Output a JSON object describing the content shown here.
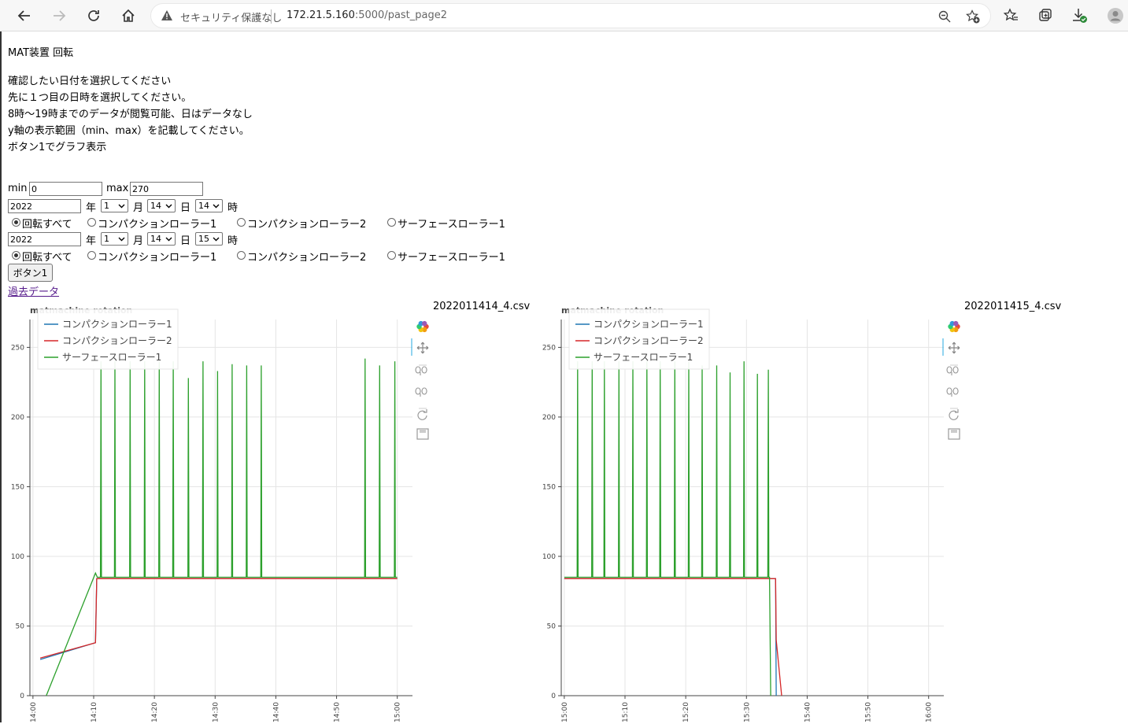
{
  "browser": {
    "security_text": "セキュリティ保護なし",
    "url_host": "172.21.5.160",
    "url_path": ":5000/past_page2"
  },
  "page": {
    "heading": "MAT装置 回転",
    "instructions": [
      "確認したい日付を選択してください",
      "先に１つ目の日時を選択してください。",
      "8時～19時までのデータが閲覧可能、日はデータなし",
      "y軸の表示範囲（min、max）を記載してください。",
      "ボタン1でグラフ表示"
    ],
    "min_label": "min",
    "min_value": "0",
    "max_label": "max",
    "max_value": "270",
    "rows": [
      {
        "year": "2022",
        "year_unit": "年",
        "month": "1",
        "month_unit": "月",
        "day": "14",
        "day_unit": "日",
        "hour": "14",
        "hour_unit": "時"
      },
      {
        "year": "2022",
        "year_unit": "年",
        "month": "1",
        "month_unit": "月",
        "day": "14",
        "day_unit": "日",
        "hour": "15",
        "hour_unit": "時"
      }
    ],
    "radio_options": [
      "回転すべて",
      "コンパクションローラー1",
      "コンパクションローラー2",
      "サーフェースローラー1"
    ],
    "selected_radio": 0,
    "button_label": "ボタン1",
    "link_label": "過去データ"
  },
  "colors": {
    "series1": "#1f77b4",
    "series2": "#d62728",
    "series3": "#2ca02c"
  },
  "chart_data": [
    {
      "type": "line",
      "title": "matmachine rotation",
      "file_label": "2022011414_4.csv",
      "ylim": [
        0,
        270
      ],
      "y_ticks": [
        0,
        50,
        100,
        150,
        200,
        250
      ],
      "x_ticks": [
        "14:00",
        "14:10",
        "14:20",
        "14:30",
        "14:40",
        "14:50",
        "15:00"
      ],
      "x_range_minutes": [
        -0.5,
        62.5
      ],
      "legend_position": "top-left",
      "grid": true,
      "series": [
        {
          "name": "コンパクションローラー1",
          "x": [
            1.2,
            10.3,
            10.5,
            27.5,
            36.9,
            54.5,
            60
          ],
          "y": [
            26,
            38,
            84,
            84,
            84,
            84,
            84
          ]
        },
        {
          "name": "コンパクションローラー2",
          "x": [
            1.2,
            10.3,
            10.5,
            27.5,
            36.9,
            54.5,
            60
          ],
          "y": [
            27,
            38,
            84,
            84,
            84,
            84,
            84
          ]
        },
        {
          "name": "サーフェースローラー1",
          "x": [
            2.2,
            10.3,
            10.6,
            60
          ],
          "y": [
            0,
            88,
            85,
            85
          ],
          "spikes": [
            11.2,
            13.5,
            16,
            18.4,
            20.8,
            23.1,
            25.6,
            28,
            30.4,
            32.8,
            35.2,
            37.6,
            54.7,
            57.1,
            59.6
          ],
          "spike_peaks": [
            240,
            240,
            240,
            240,
            240,
            240,
            228,
            240,
            233,
            238,
            237,
            237,
            242,
            237,
            240
          ]
        }
      ]
    },
    {
      "type": "line",
      "title": "matmachine rotation",
      "file_label": "2022011415_4.csv",
      "ylim": [
        0,
        270
      ],
      "y_ticks": [
        0,
        50,
        100,
        150,
        200,
        250
      ],
      "x_ticks": [
        "15:00",
        "15:10",
        "15:20",
        "15:30",
        "15:40",
        "15:50",
        "16:00"
      ],
      "x_range_minutes": [
        -0.5,
        62.5
      ],
      "legend_position": "top-left",
      "grid": true,
      "series": [
        {
          "name": "コンパクションローラー1",
          "x": [
            0,
            34.3,
            34.8,
            34.9
          ],
          "y": [
            84,
            84,
            84,
            0
          ]
        },
        {
          "name": "コンパクションローラー2",
          "x": [
            0,
            34.3,
            34.8,
            34.9,
            35.8
          ],
          "y": [
            84,
            84,
            84,
            40,
            0
          ]
        },
        {
          "name": "サーフェースローラー1",
          "x": [
            0,
            33.8,
            34.0
          ],
          "y": [
            85,
            85,
            0
          ],
          "spikes": [
            2.2,
            4.6,
            6.6,
            9.0,
            11.3,
            13.6,
            15.8,
            18.2,
            20.5,
            22.7,
            25.1,
            27.3,
            29.6,
            31.8,
            33.6
          ],
          "spike_peaks": [
            240,
            240,
            240,
            240,
            240,
            240,
            240,
            240,
            240,
            237,
            237,
            232,
            240,
            231,
            234
          ]
        }
      ]
    }
  ]
}
